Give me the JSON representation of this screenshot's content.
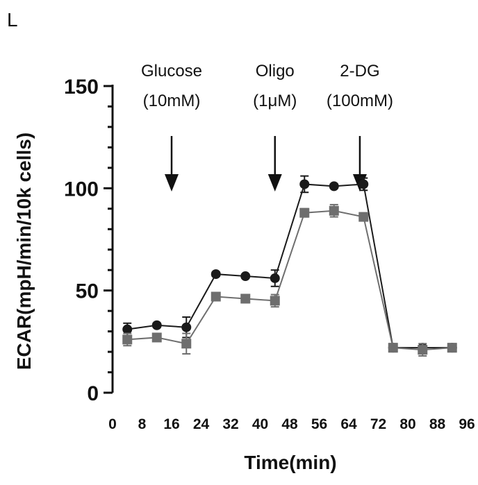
{
  "panel_label": "L",
  "colors": {
    "axis": "#111111",
    "series_circle": "#1a1a1a",
    "series_square": "#6e6e6e"
  },
  "chart_data": {
    "type": "line",
    "xlabel": "Time(min)",
    "ylabel": "ECAR(mpH/min/10k cells)",
    "xlim": [
      0,
      96
    ],
    "ylim": [
      0,
      150
    ],
    "x_ticks": [
      "0",
      "8",
      "16",
      "24",
      "32",
      "40",
      "48",
      "56",
      "64",
      "72",
      "80",
      "88",
      "96"
    ],
    "y_ticks": [
      "0",
      "50",
      "100",
      "150"
    ],
    "x": [
      4,
      12,
      20,
      28,
      36,
      44,
      52,
      60,
      68,
      76,
      84,
      92
    ],
    "series": [
      {
        "marker": "circle",
        "values": [
          31,
          33,
          32,
          58,
          57,
          56,
          102,
          101,
          102,
          22,
          22,
          22
        ],
        "errors": [
          3,
          1,
          5,
          1,
          1,
          4,
          4,
          1,
          3,
          1,
          1,
          1
        ]
      },
      {
        "marker": "square",
        "values": [
          26,
          27,
          24,
          47,
          46,
          45,
          88,
          89,
          86,
          22,
          21,
          22
        ],
        "errors": [
          3,
          1,
          5,
          1,
          2,
          3,
          2,
          3,
          1,
          2,
          3,
          2
        ]
      }
    ],
    "annotations": [
      {
        "line1": "Glucose",
        "line2": "(10mM)",
        "x": 16
      },
      {
        "line1": "Oligo",
        "line2": "(1μM)",
        "x": 44
      },
      {
        "line1": "2-DG",
        "line2": "(100mM)",
        "x": 67
      }
    ],
    "grid": false
  }
}
